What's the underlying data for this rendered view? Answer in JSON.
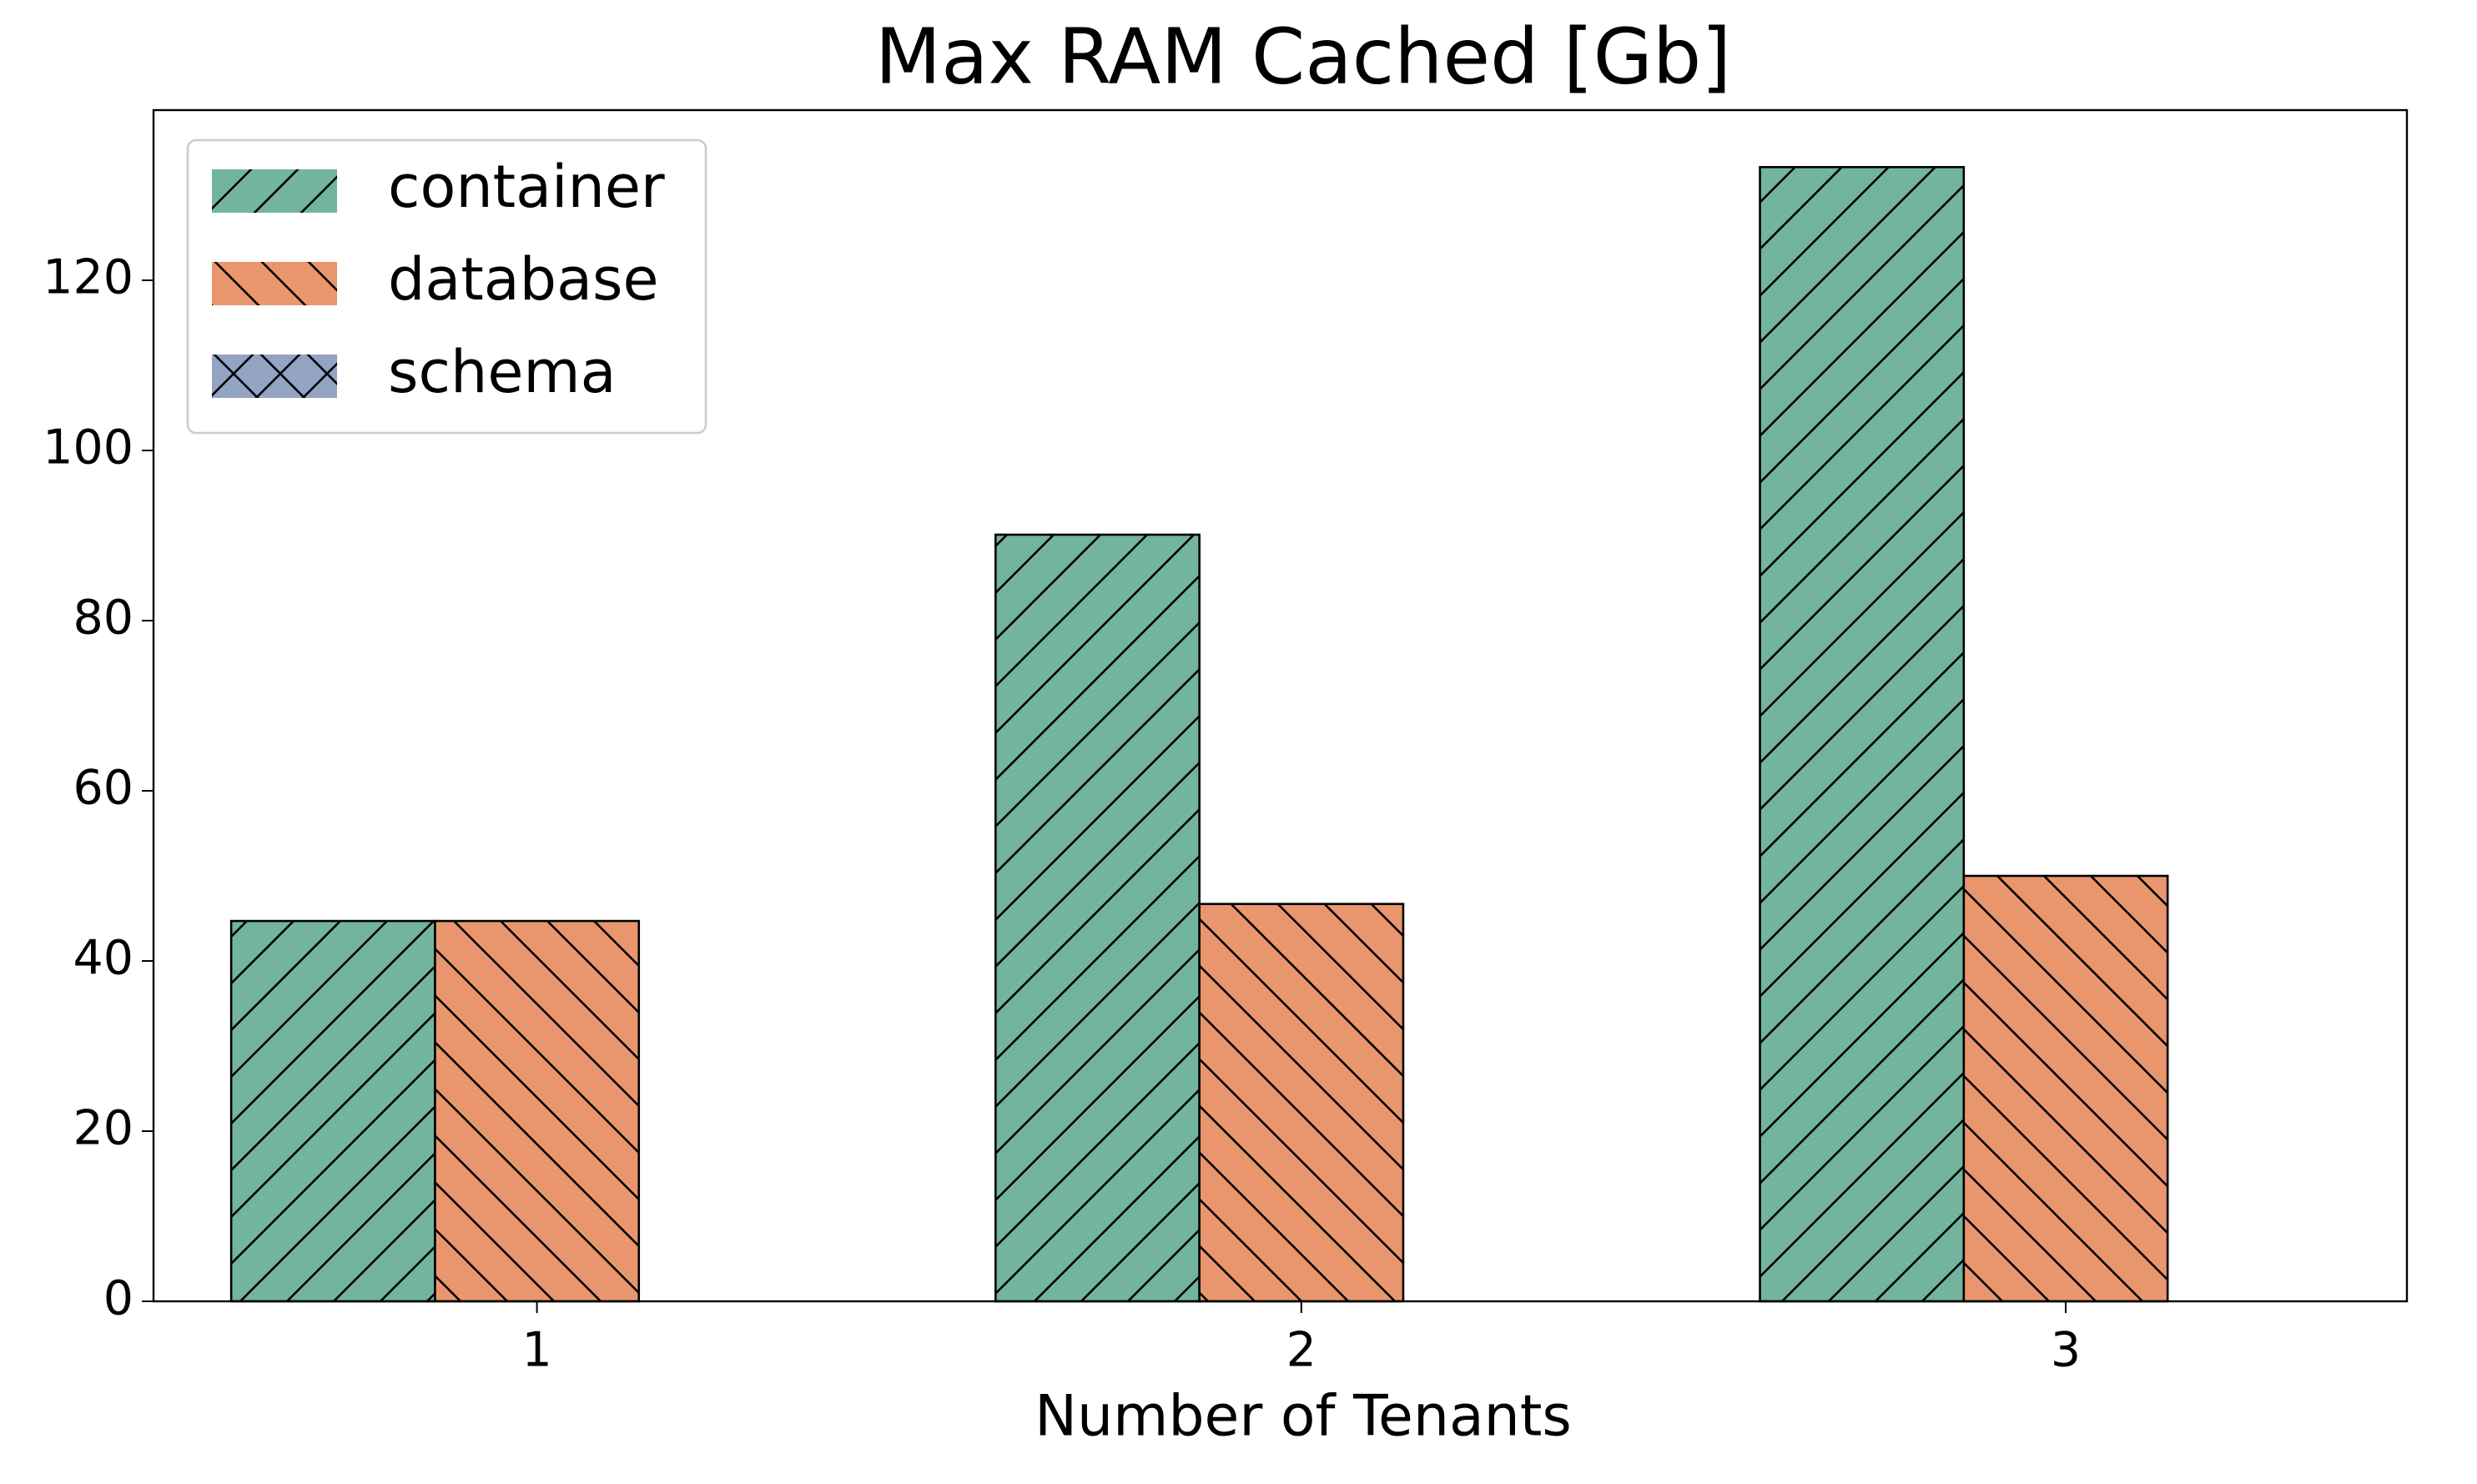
{
  "chart_data": {
    "type": "bar",
    "title": "Max RAM Cached [Gb]",
    "x_label": "Number of Tenants",
    "categories": [
      1,
      2,
      3
    ],
    "series": [
      {
        "name": "container",
        "color": "#73b49e",
        "hatch": "/",
        "values": [
          44.7,
          90.1,
          133.3
        ]
      },
      {
        "name": "database",
        "color": "#e9966f",
        "hatch": "\\",
        "values": [
          44.7,
          46.7,
          50
        ]
      },
      {
        "name": "schema",
        "color": "#93a3c3",
        "hatch": "x",
        "values": [
          null,
          null,
          null
        ]
      }
    ],
    "ylim": [
      0,
      140
    ],
    "yticks": [
      0,
      20,
      40,
      60,
      80,
      100,
      120
    ],
    "grid": false,
    "legend": "upper left"
  }
}
